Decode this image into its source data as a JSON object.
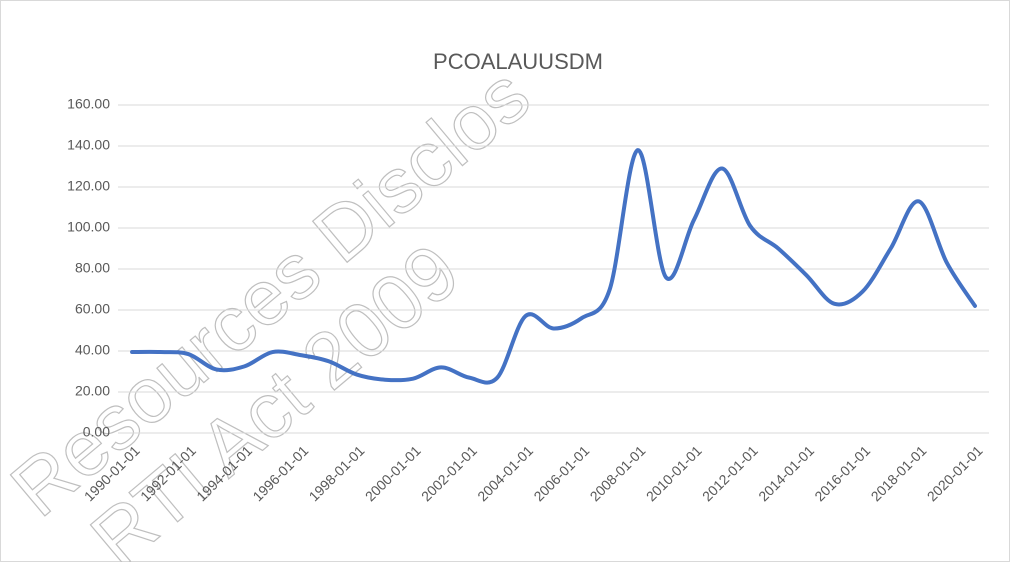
{
  "chart_data": {
    "type": "line",
    "title": "PCOALAUUSDM",
    "categories": [
      "1990-01-01",
      null,
      "1992-01-01",
      null,
      "1994-01-01",
      null,
      "1996-01-01",
      null,
      "1998-01-01",
      null,
      "2000-01-01",
      null,
      "2002-01-01",
      null,
      "2004-01-01",
      null,
      "2006-01-01",
      null,
      "2008-01-01",
      null,
      "2010-01-01",
      null,
      "2012-01-01",
      null,
      "2014-01-01",
      null,
      "2016-01-01",
      null,
      "2018-01-01",
      null,
      "2020-01-01"
    ],
    "series": [
      {
        "name": "PCOALAUUSDM",
        "color": "#4472c4",
        "values": [
          39.5,
          39.5,
          38.5,
          31,
          32.5,
          39.5,
          38,
          35,
          28.5,
          26,
          26.5,
          32,
          27,
          27,
          57,
          51,
          56,
          70,
          138,
          76,
          104,
          129,
          101,
          90,
          77,
          63,
          69,
          90,
          113,
          83,
          62
        ]
      }
    ],
    "ylim": [
      0,
      160
    ],
    "yticks": [
      {
        "value": 0,
        "label": "0.00"
      },
      {
        "value": 20,
        "label": "20.00"
      },
      {
        "value": 40,
        "label": "40.00"
      },
      {
        "value": 60,
        "label": "60.00"
      },
      {
        "value": 80,
        "label": "80.00"
      },
      {
        "value": 100,
        "label": "100.00"
      },
      {
        "value": 120,
        "label": "120.00"
      },
      {
        "value": 140,
        "label": "140.00"
      },
      {
        "value": 160,
        "label": "160.00"
      }
    ],
    "grid": true,
    "watermark": [
      "Resources Disclos",
      "RTI Act 2009"
    ]
  }
}
